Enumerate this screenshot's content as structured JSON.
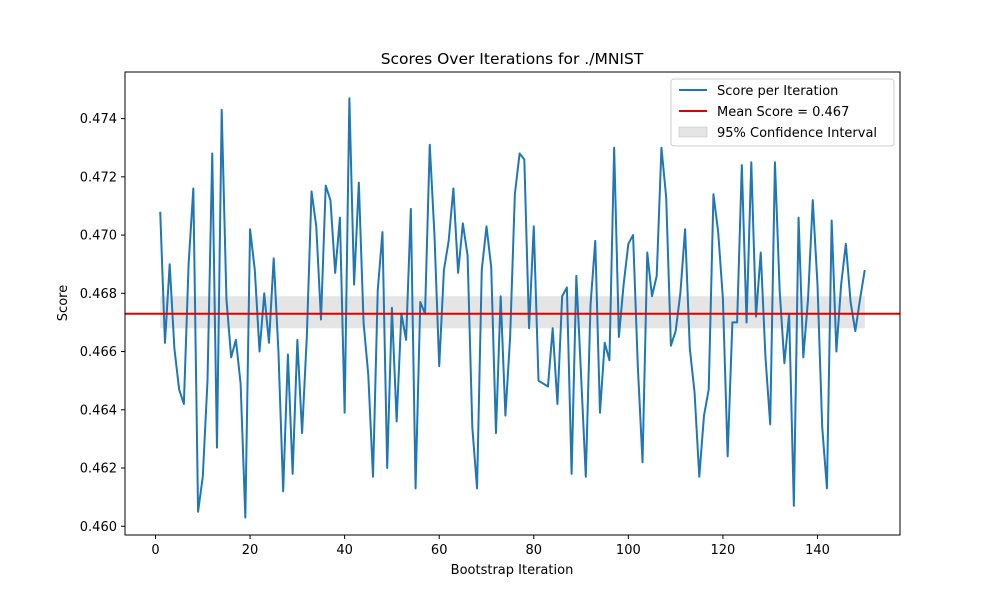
{
  "chart_data": {
    "type": "line",
    "title": "Scores Over Iterations for ./MNIST",
    "xlabel": "Bootstrap Iteration",
    "ylabel": "Score",
    "xlim": [
      -6.45,
      157.45
    ],
    "ylim": [
      0.4597,
      0.4756
    ],
    "x_ticks": [
      0,
      20,
      40,
      60,
      80,
      100,
      120,
      140
    ],
    "y_ticks": [
      0.46,
      0.462,
      0.464,
      0.466,
      0.468,
      0.47,
      0.472,
      0.474
    ],
    "y_tick_labels": [
      "0.460",
      "0.462",
      "0.464",
      "0.466",
      "0.468",
      "0.470",
      "0.472",
      "0.474"
    ],
    "grid": false,
    "legend_position": "top-right",
    "legend": {
      "line_label": "Score per Iteration",
      "mean_label": "Mean Score = 0.467",
      "ci_label": "95% Confidence Interval"
    },
    "mean": 0.4673,
    "ci": [
      0.4668,
      0.4679
    ],
    "colors": {
      "line": "#1f77b4",
      "mean": "#e00000",
      "ci": "#d3d3d3"
    },
    "series": [
      {
        "name": "Score per Iteration",
        "x": [
          1,
          2,
          3,
          4,
          5,
          6,
          7,
          8,
          9,
          10,
          11,
          12,
          13,
          14,
          15,
          16,
          17,
          18,
          19,
          20,
          21,
          22,
          23,
          24,
          25,
          26,
          27,
          28,
          29,
          30,
          31,
          32,
          33,
          34,
          35,
          36,
          37,
          38,
          39,
          40,
          41,
          42,
          43,
          44,
          45,
          46,
          47,
          48,
          49,
          50,
          51,
          52,
          53,
          54,
          55,
          56,
          57,
          58,
          59,
          60,
          61,
          62,
          63,
          64,
          65,
          66,
          67,
          68,
          69,
          70,
          71,
          72,
          73,
          74,
          75,
          76,
          77,
          78,
          79,
          80,
          81,
          82,
          83,
          84,
          85,
          86,
          87,
          88,
          89,
          90,
          91,
          92,
          93,
          94,
          95,
          96,
          97,
          98,
          99,
          100,
          101,
          102,
          103,
          104,
          105,
          106,
          107,
          108,
          109,
          110,
          111,
          112,
          113,
          114,
          115,
          116,
          117,
          118,
          119,
          120,
          121,
          122,
          123,
          124,
          125,
          126,
          127,
          128,
          129,
          130,
          131,
          132,
          133,
          134,
          135,
          136,
          137,
          138,
          139,
          140,
          141,
          142,
          143,
          144,
          145,
          146,
          147,
          148,
          149,
          150
        ],
        "y": [
          0.4708,
          0.4663,
          0.469,
          0.4661,
          0.4647,
          0.4642,
          0.469,
          0.4716,
          0.4605,
          0.4617,
          0.465,
          0.4728,
          0.4627,
          0.4743,
          0.4678,
          0.4658,
          0.4664,
          0.4649,
          0.4603,
          0.4702,
          0.4688,
          0.466,
          0.468,
          0.4663,
          0.4692,
          0.466,
          0.4612,
          0.4659,
          0.4618,
          0.4664,
          0.4632,
          0.4665,
          0.4715,
          0.4703,
          0.4671,
          0.4717,
          0.4712,
          0.4687,
          0.4706,
          0.4639,
          0.4747,
          0.4683,
          0.4718,
          0.467,
          0.4652,
          0.4617,
          0.4681,
          0.4701,
          0.462,
          0.4675,
          0.4636,
          0.4673,
          0.4664,
          0.4709,
          0.4613,
          0.4677,
          0.4673,
          0.4731,
          0.47,
          0.4655,
          0.4688,
          0.4698,
          0.4716,
          0.4687,
          0.4704,
          0.4693,
          0.4634,
          0.4613,
          0.4688,
          0.4703,
          0.4689,
          0.4632,
          0.4679,
          0.4638,
          0.4665,
          0.4714,
          0.4728,
          0.4726,
          0.4668,
          0.4703,
          0.465,
          0.4649,
          0.4648,
          0.4668,
          0.4642,
          0.4679,
          0.4682,
          0.4618,
          0.4686,
          0.4652,
          0.4617,
          0.4676,
          0.4698,
          0.4639,
          0.4663,
          0.4657,
          0.473,
          0.4665,
          0.4683,
          0.4697,
          0.47,
          0.4655,
          0.4622,
          0.4694,
          0.4679,
          0.4686,
          0.473,
          0.4713,
          0.4662,
          0.4667,
          0.468,
          0.4702,
          0.4661,
          0.4646,
          0.4617,
          0.4638,
          0.4647,
          0.4714,
          0.4701,
          0.4678,
          0.4624,
          0.467,
          0.467,
          0.4724,
          0.467,
          0.4725,
          0.4672,
          0.4694,
          0.4658,
          0.4635,
          0.4725,
          0.4681,
          0.4656,
          0.4673,
          0.4607,
          0.4706,
          0.4658,
          0.4678,
          0.4712,
          0.4683,
          0.4634,
          0.4613,
          0.4705,
          0.466,
          0.4683,
          0.4697,
          0.4677,
          0.4667,
          0.4678,
          0.4688
        ]
      }
    ]
  }
}
